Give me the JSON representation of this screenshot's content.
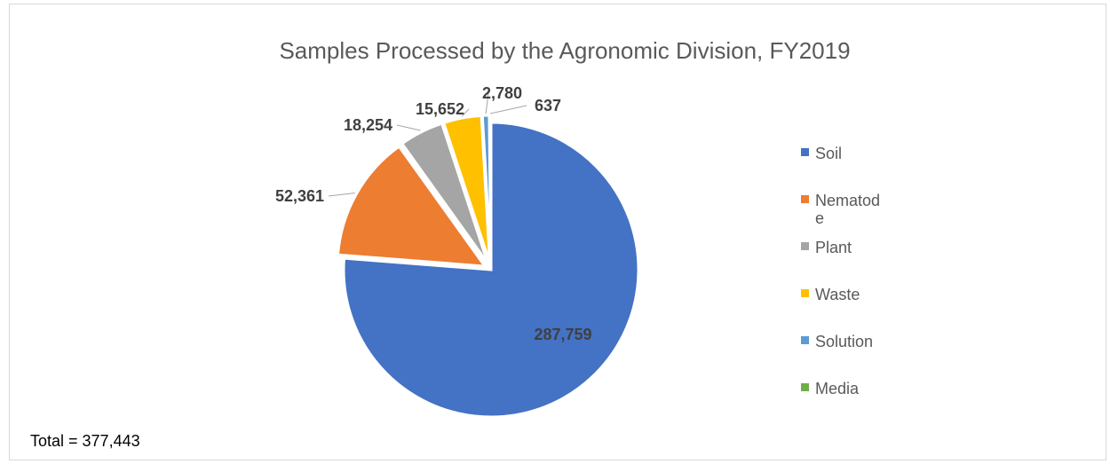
{
  "chart_data": {
    "type": "pie",
    "title": "Samples Processed by the Agronomic Division, FY2019",
    "slices": [
      {
        "label": "Soil",
        "value": 287759,
        "display": "287,759",
        "color": "#4472C4"
      },
      {
        "label": "Nematode",
        "value": 52361,
        "display": "52,361",
        "color": "#ED7D31"
      },
      {
        "label": "Plant",
        "value": 18254,
        "display": "18,254",
        "color": "#A5A5A5"
      },
      {
        "label": "Waste",
        "value": 15652,
        "display": "15,652",
        "color": "#FFC000"
      },
      {
        "label": "Solution",
        "value": 2780,
        "display": "2,780",
        "color": "#5B9BD5"
      },
      {
        "label": "Media",
        "value": 637,
        "display": "637",
        "color": "#70AD47"
      }
    ],
    "legend_position": "right",
    "legend_lines": [
      [
        "Soil"
      ],
      [
        "Nematod",
        "e"
      ],
      [
        "Plant"
      ],
      [
        "Waste"
      ],
      [
        "Solution"
      ],
      [
        "Media"
      ]
    ]
  },
  "footnote": "Total = 377,443"
}
